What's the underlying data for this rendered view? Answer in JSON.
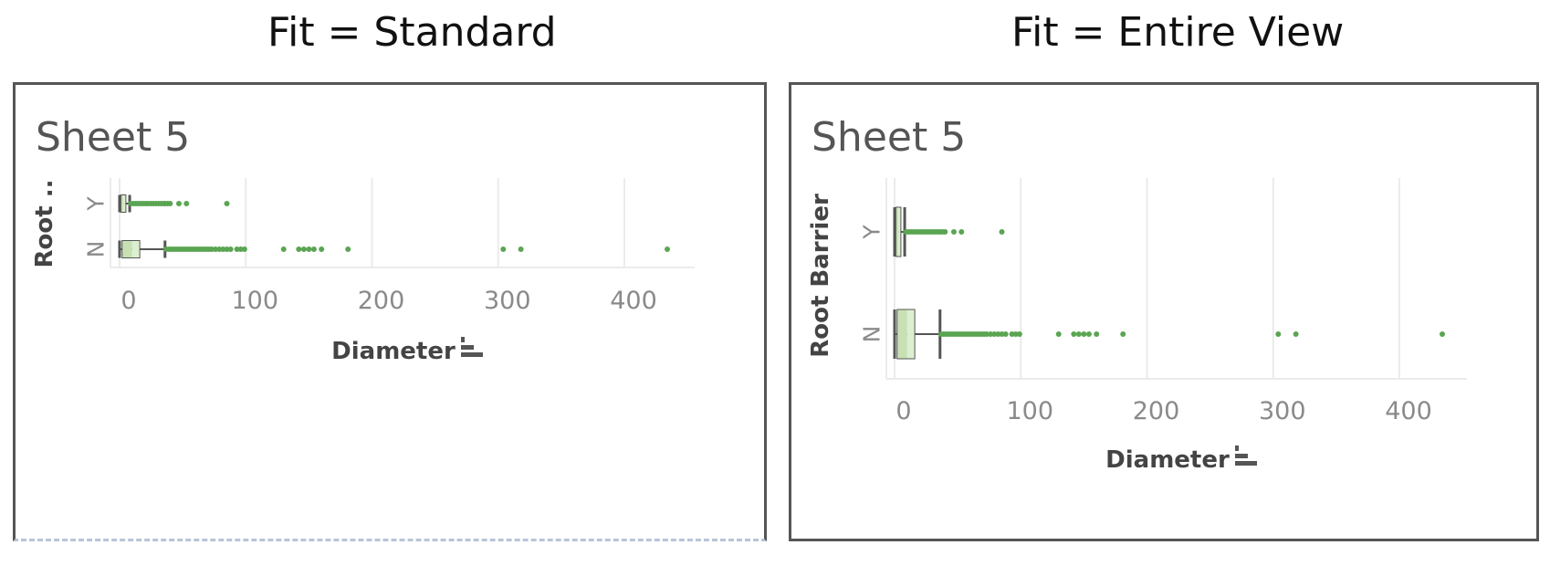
{
  "captions": {
    "left": "Fit = Standard",
    "right": "Fit = Entire View"
  },
  "panels": [
    {
      "fit": "Standard",
      "sheet_title": "Sheet 5",
      "y_axis_label": "Root ..",
      "x_axis_label": "Diameter",
      "sort_icon": "sort-descending-icon"
    },
    {
      "fit": "Entire View",
      "sheet_title": "Sheet 5",
      "y_axis_label": "Root Barrier",
      "x_axis_label": "Diameter",
      "sort_icon": "sort-descending-icon"
    }
  ],
  "colors": {
    "points": "#5aa552",
    "box_lower": "#c7e1b4",
    "box_upper": "#dcefd0",
    "whisker": "#555555",
    "grid": "#ebebeb",
    "frame": "#555555"
  },
  "chart_data": {
    "type": "boxplot",
    "xlabel": "Diameter",
    "ylabel": "Root Barrier",
    "xlim": [
      0,
      460
    ],
    "x_ticks": [
      0,
      100,
      200,
      300,
      400
    ],
    "x_tick_labels": [
      "0",
      "100",
      "200",
      "300",
      "400"
    ],
    "grid": true,
    "categories": [
      "Y",
      "N"
    ],
    "boxes": [
      {
        "category": "Y",
        "whisker_low": 0,
        "q1": 1,
        "median": 3,
        "q3": 5,
        "whisker_high": 8
      },
      {
        "category": "N",
        "whisker_low": 0,
        "q1": 2,
        "median": 10,
        "q3": 16,
        "whisker_high": 36
      }
    ],
    "outliers": [
      {
        "category": "Y",
        "values": [
          9,
          11,
          13,
          15,
          17,
          19,
          21,
          23,
          25,
          27,
          29,
          31,
          33,
          35,
          36,
          38,
          40,
          47,
          53,
          85
        ]
      },
      {
        "category": "N",
        "values": [
          37,
          39,
          41,
          43,
          45,
          47,
          49,
          51,
          53,
          55,
          57,
          59,
          61,
          63,
          65,
          67,
          69,
          71,
          73,
          76,
          79,
          82,
          85,
          88,
          93,
          96,
          99,
          130,
          142,
          146,
          150,
          154,
          160,
          181,
          304,
          318,
          434
        ]
      }
    ]
  }
}
